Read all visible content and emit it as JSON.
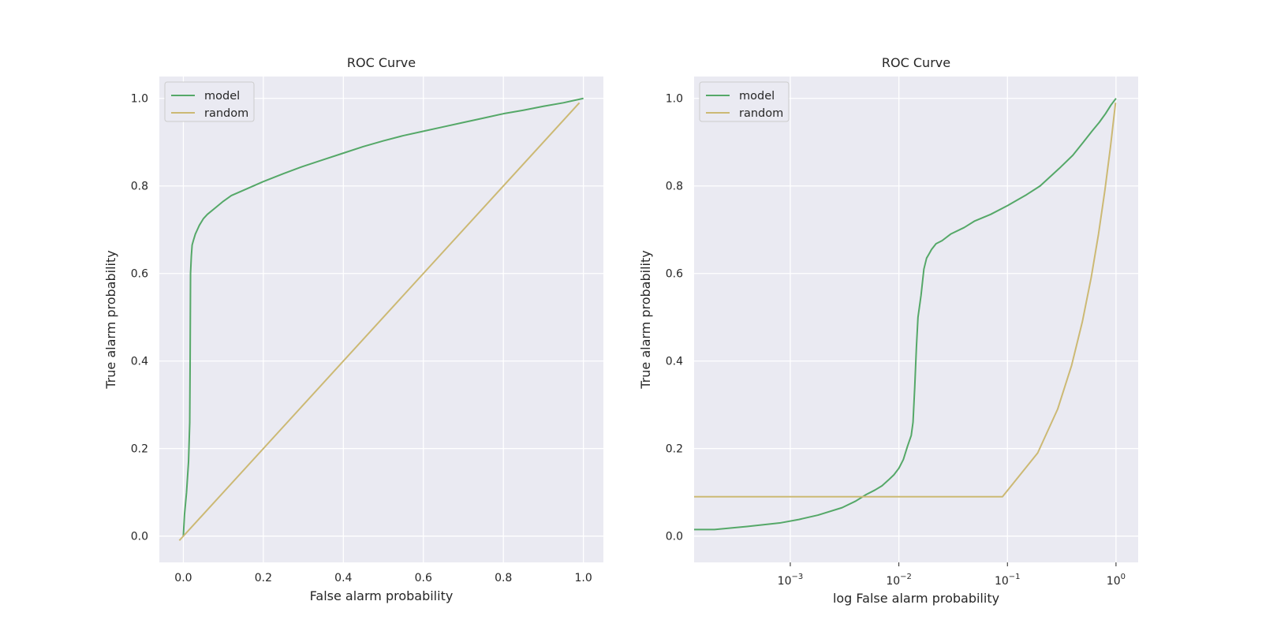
{
  "figure": {
    "colors": {
      "model": "#55a868",
      "random": "#ccb974",
      "background": "#eaeaf2",
      "grid": "#ffffff",
      "text": "#262626"
    }
  },
  "chart_data": [
    {
      "type": "line",
      "title": "ROC Curve",
      "xlabel": "False alarm probability",
      "ylabel": "True alarm probability",
      "xscale": "linear",
      "xlim": [
        -0.06,
        1.05
      ],
      "ylim": [
        -0.06,
        1.05
      ],
      "xticks": [
        0.0,
        0.2,
        0.4,
        0.6,
        0.8,
        1.0
      ],
      "xtick_labels": [
        "0.0",
        "0.2",
        "0.4",
        "0.6",
        "0.8",
        "1.0"
      ],
      "yticks": [
        0.0,
        0.2,
        0.4,
        0.6,
        0.8,
        1.0
      ],
      "ytick_labels": [
        "0.0",
        "0.2",
        "0.4",
        "0.6",
        "0.8",
        "1.0"
      ],
      "grid": true,
      "legend": {
        "position": "top-left",
        "entries": [
          "model",
          "random"
        ]
      },
      "series": [
        {
          "name": "model",
          "x": [
            0.0,
            0.003,
            0.008,
            0.013,
            0.016,
            0.017,
            0.018,
            0.02,
            0.022,
            0.025,
            0.03,
            0.035,
            0.04,
            0.05,
            0.06,
            0.08,
            0.1,
            0.12,
            0.15,
            0.2,
            0.25,
            0.3,
            0.35,
            0.4,
            0.45,
            0.5,
            0.55,
            0.6,
            0.65,
            0.7,
            0.75,
            0.8,
            0.85,
            0.9,
            0.95,
            1.0
          ],
          "y": [
            0.0,
            0.05,
            0.1,
            0.17,
            0.26,
            0.4,
            0.6,
            0.64,
            0.665,
            0.675,
            0.69,
            0.7,
            0.71,
            0.725,
            0.735,
            0.75,
            0.765,
            0.778,
            0.79,
            0.81,
            0.828,
            0.845,
            0.86,
            0.875,
            0.89,
            0.903,
            0.915,
            0.925,
            0.935,
            0.945,
            0.955,
            0.965,
            0.973,
            0.982,
            0.99,
            1.0
          ]
        },
        {
          "name": "random",
          "x": [
            -0.01,
            0.99
          ],
          "y": [
            -0.01,
            0.99
          ]
        }
      ]
    },
    {
      "type": "line",
      "title": "ROC Curve",
      "xlabel": "log False alarm probability",
      "ylabel": "True alarm probability",
      "xscale": "log",
      "xlim": [
        0.00013,
        1.6
      ],
      "ylim": [
        -0.06,
        1.05
      ],
      "xticks": [
        0.001,
        0.01,
        0.1,
        1.0
      ],
      "xtick_labels": [
        {
          "base": "10",
          "exp": "−3"
        },
        {
          "base": "10",
          "exp": "−2"
        },
        {
          "base": "10",
          "exp": "−1"
        },
        {
          "base": "10",
          "exp": "0"
        }
      ],
      "yticks": [
        0.0,
        0.2,
        0.4,
        0.6,
        0.8,
        1.0
      ],
      "ytick_labels": [
        "0.0",
        "0.2",
        "0.4",
        "0.6",
        "0.8",
        "1.0"
      ],
      "grid": true,
      "legend": {
        "position": "top-left",
        "entries": [
          "model",
          "random"
        ]
      },
      "series": [
        {
          "name": "model",
          "x": [
            0.00013,
            0.0002,
            0.0004,
            0.0008,
            0.0012,
            0.0018,
            0.003,
            0.004,
            0.005,
            0.006,
            0.007,
            0.008,
            0.009,
            0.01,
            0.011,
            0.012,
            0.013,
            0.0135,
            0.014,
            0.0145,
            0.015,
            0.016,
            0.017,
            0.018,
            0.019,
            0.02,
            0.022,
            0.025,
            0.03,
            0.04,
            0.05,
            0.07,
            0.1,
            0.15,
            0.2,
            0.3,
            0.4,
            0.5,
            0.6,
            0.7,
            0.8,
            0.9,
            1.0
          ],
          "y": [
            0.015,
            0.015,
            0.022,
            0.03,
            0.038,
            0.048,
            0.065,
            0.08,
            0.095,
            0.105,
            0.115,
            0.128,
            0.14,
            0.155,
            0.175,
            0.205,
            0.23,
            0.26,
            0.34,
            0.43,
            0.5,
            0.55,
            0.61,
            0.635,
            0.645,
            0.655,
            0.668,
            0.675,
            0.69,
            0.705,
            0.72,
            0.735,
            0.755,
            0.78,
            0.8,
            0.84,
            0.87,
            0.9,
            0.925,
            0.945,
            0.965,
            0.985,
            1.0
          ]
        },
        {
          "name": "random",
          "x": [
            0.00013,
            0.09,
            0.19,
            0.29,
            0.39,
            0.49,
            0.59,
            0.69,
            0.79,
            0.89,
            0.99
          ],
          "y": [
            0.09,
            0.09,
            0.19,
            0.29,
            0.39,
            0.49,
            0.59,
            0.69,
            0.79,
            0.89,
            0.99
          ]
        }
      ]
    }
  ]
}
